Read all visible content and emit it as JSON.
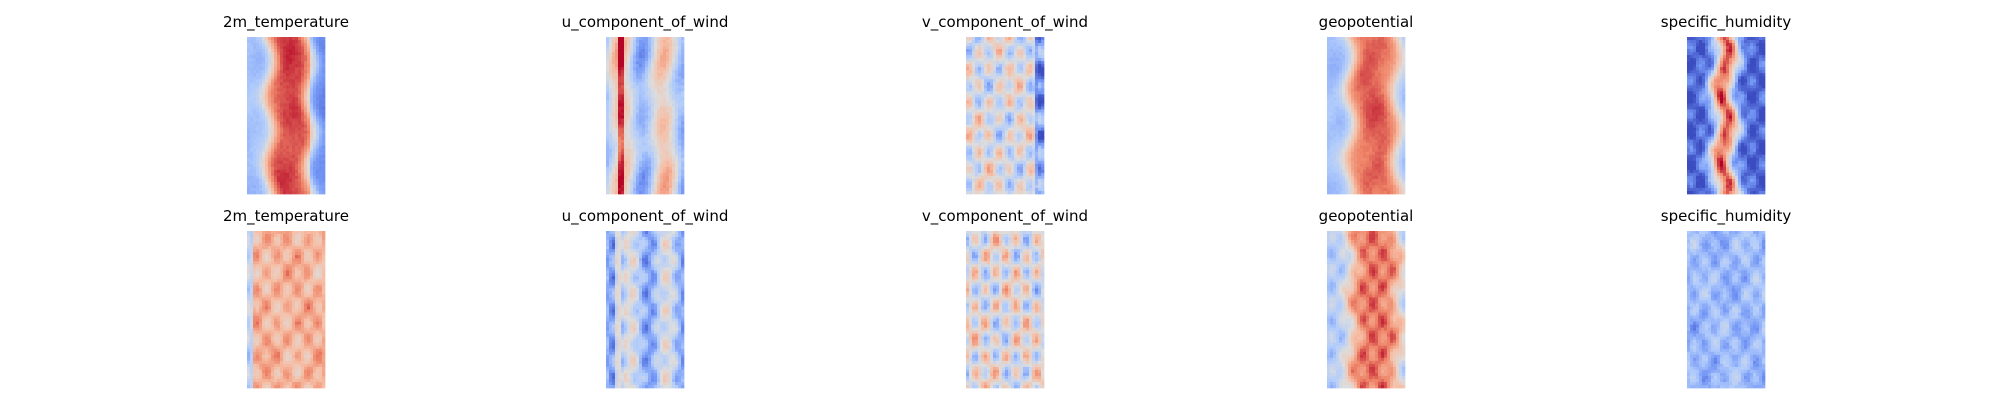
{
  "figure": {
    "rows": 2,
    "cols": 5
  },
  "colormap": {
    "name": "coolwarm",
    "stops": [
      "#3b4cc0",
      "#7396f5",
      "#b0cbfc",
      "#dddddd",
      "#f6bfa6",
      "#ee8468",
      "#b40426"
    ]
  },
  "chart_data": [
    {
      "type": "heatmap",
      "title": "2m_temperature",
      "row": 0,
      "col": 0,
      "pattern": "temp_band",
      "seed": 11
    },
    {
      "type": "heatmap",
      "title": "u_component_of_wind",
      "row": 0,
      "col": 1,
      "pattern": "uwind",
      "seed": 23
    },
    {
      "type": "heatmap",
      "title": "v_component_of_wind",
      "row": 0,
      "col": 2,
      "pattern": "vwind",
      "seed": 37
    },
    {
      "type": "heatmap",
      "title": "geopotential",
      "row": 0,
      "col": 3,
      "pattern": "geo_band",
      "seed": 41
    },
    {
      "type": "heatmap",
      "title": "specific_humidity",
      "row": 0,
      "col": 4,
      "pattern": "humid_band",
      "seed": 53
    },
    {
      "type": "heatmap",
      "title": "2m_temperature",
      "row": 1,
      "col": 0,
      "pattern": "temp_pred",
      "seed": 61
    },
    {
      "type": "heatmap",
      "title": "u_component_of_wind",
      "row": 1,
      "col": 1,
      "pattern": "uwind_pred",
      "seed": 73
    },
    {
      "type": "heatmap",
      "title": "v_component_of_wind",
      "row": 1,
      "col": 2,
      "pattern": "vwind_pred",
      "seed": 89
    },
    {
      "type": "heatmap",
      "title": "geopotential",
      "row": 1,
      "col": 3,
      "pattern": "geo_pred",
      "seed": 97
    },
    {
      "type": "heatmap",
      "title": "specific_humidity",
      "row": 1,
      "col": 4,
      "pattern": "humid_pred",
      "seed": 101
    }
  ]
}
